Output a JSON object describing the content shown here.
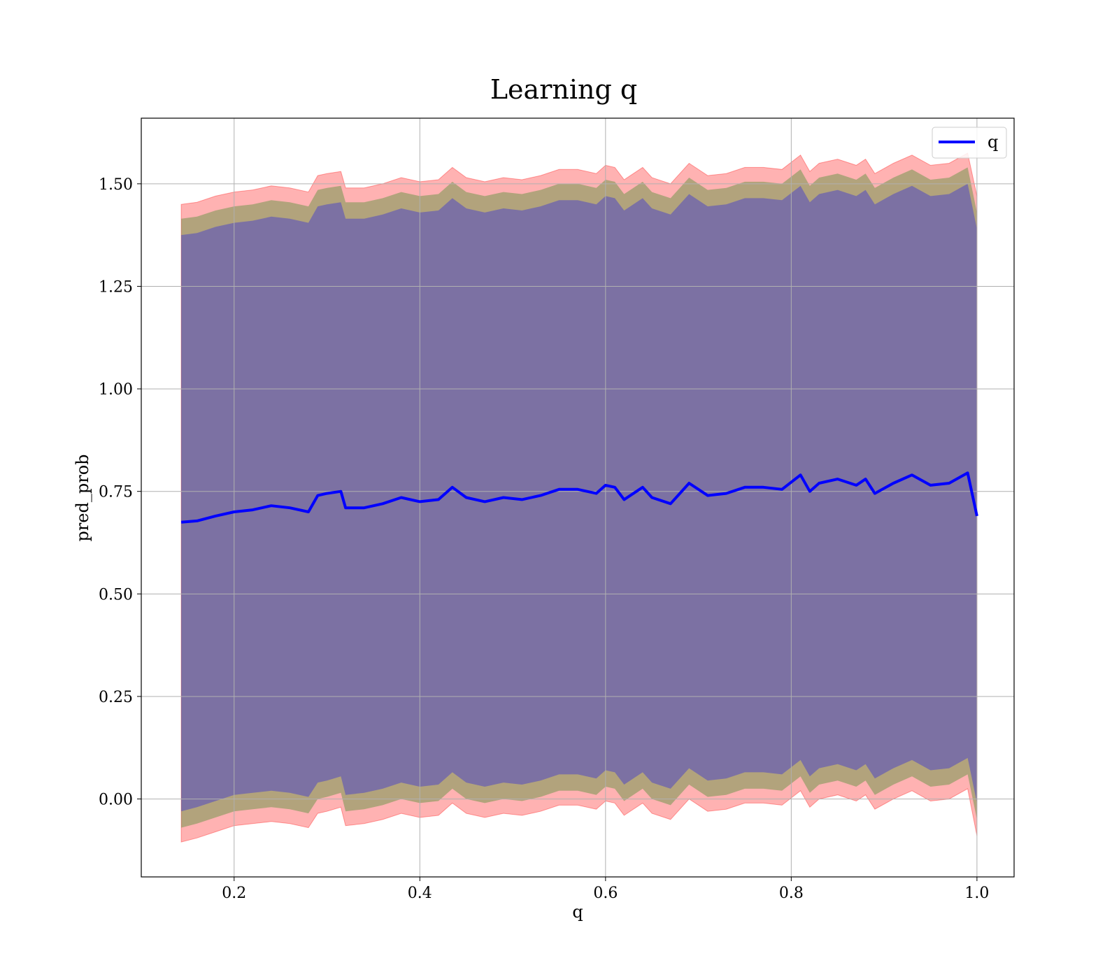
{
  "chart_data": {
    "type": "line",
    "title": "Learning q",
    "xlabel": "q",
    "ylabel": "pred_prob",
    "xlim": [
      0.1,
      1.04
    ],
    "ylim": [
      -0.19,
      1.66
    ],
    "xticks": [
      0.2,
      0.4,
      0.6,
      0.8,
      1.0
    ],
    "xtick_labels": [
      "0.2",
      "0.4",
      "0.6",
      "0.8",
      "1.0"
    ],
    "yticks": [
      0.0,
      0.25,
      0.5,
      0.75,
      1.0,
      1.25,
      1.5
    ],
    "ytick_labels": [
      "0.00",
      "0.25",
      "0.50",
      "0.75",
      "1.00",
      "1.25",
      "1.50"
    ],
    "grid": true,
    "legend": {
      "location": "upper-right",
      "entries": [
        {
          "label": "q",
          "color": "#0000ff"
        }
      ]
    },
    "colors": {
      "line": "#0000ff",
      "band": "#ff0000",
      "band_inner": "#008000",
      "band_core": "#0000ff"
    },
    "series": [
      {
        "name": "q",
        "x": [
          0.143,
          0.16,
          0.18,
          0.2,
          0.22,
          0.24,
          0.26,
          0.28,
          0.29,
          0.3,
          0.315,
          0.32,
          0.34,
          0.36,
          0.38,
          0.4,
          0.42,
          0.435,
          0.45,
          0.47,
          0.49,
          0.51,
          0.53,
          0.55,
          0.57,
          0.59,
          0.6,
          0.61,
          0.62,
          0.64,
          0.65,
          0.67,
          0.69,
          0.71,
          0.73,
          0.75,
          0.77,
          0.79,
          0.81,
          0.82,
          0.83,
          0.85,
          0.87,
          0.88,
          0.89,
          0.91,
          0.93,
          0.95,
          0.97,
          0.99,
          1.0
        ],
        "y": [
          0.675,
          0.678,
          0.69,
          0.7,
          0.705,
          0.715,
          0.71,
          0.7,
          0.74,
          0.745,
          0.75,
          0.71,
          0.71,
          0.72,
          0.735,
          0.725,
          0.73,
          0.76,
          0.735,
          0.725,
          0.735,
          0.73,
          0.74,
          0.755,
          0.755,
          0.745,
          0.765,
          0.76,
          0.73,
          0.76,
          0.735,
          0.72,
          0.77,
          0.74,
          0.745,
          0.76,
          0.76,
          0.755,
          0.79,
          0.75,
          0.77,
          0.78,
          0.765,
          0.78,
          0.745,
          0.77,
          0.79,
          0.765,
          0.77,
          0.795,
          0.69
        ],
        "band_95": {
          "lower": [
            -0.105,
            -0.095,
            -0.08,
            -0.065,
            -0.06,
            -0.055,
            -0.06,
            -0.07,
            -0.035,
            -0.03,
            -0.02,
            -0.065,
            -0.06,
            -0.05,
            -0.035,
            -0.045,
            -0.04,
            -0.01,
            -0.035,
            -0.045,
            -0.035,
            -0.04,
            -0.03,
            -0.015,
            -0.015,
            -0.025,
            -0.005,
            -0.01,
            -0.04,
            -0.01,
            -0.035,
            -0.05,
            0.0,
            -0.03,
            -0.025,
            -0.01,
            -0.01,
            -0.015,
            0.02,
            -0.02,
            0.0,
            0.01,
            -0.005,
            0.01,
            -0.025,
            0.0,
            0.02,
            -0.005,
            0.0,
            0.025,
            -0.09
          ],
          "upper": [
            1.45,
            1.455,
            1.47,
            1.48,
            1.485,
            1.495,
            1.49,
            1.48,
            1.52,
            1.525,
            1.53,
            1.49,
            1.49,
            1.5,
            1.515,
            1.505,
            1.51,
            1.54,
            1.515,
            1.505,
            1.515,
            1.51,
            1.52,
            1.535,
            1.535,
            1.525,
            1.545,
            1.54,
            1.51,
            1.54,
            1.515,
            1.5,
            1.55,
            1.52,
            1.525,
            1.54,
            1.54,
            1.535,
            1.57,
            1.53,
            1.55,
            1.56,
            1.545,
            1.56,
            1.525,
            1.55,
            1.57,
            1.545,
            1.55,
            1.575,
            1.47
          ]
        },
        "band_90": {
          "lower": [
            -0.07,
            -0.06,
            -0.045,
            -0.03,
            -0.025,
            -0.02,
            -0.025,
            -0.035,
            0.0,
            0.005,
            0.015,
            -0.03,
            -0.025,
            -0.015,
            0.0,
            -0.01,
            -0.005,
            0.025,
            0.0,
            -0.01,
            0.0,
            -0.005,
            0.005,
            0.02,
            0.02,
            0.01,
            0.03,
            0.025,
            -0.005,
            0.025,
            0.0,
            -0.015,
            0.035,
            0.005,
            0.01,
            0.025,
            0.025,
            0.02,
            0.055,
            0.015,
            0.035,
            0.045,
            0.03,
            0.045,
            0.01,
            0.035,
            0.055,
            0.03,
            0.035,
            0.06,
            -0.05
          ],
          "upper": [
            1.415,
            1.42,
            1.435,
            1.445,
            1.45,
            1.46,
            1.455,
            1.445,
            1.485,
            1.49,
            1.495,
            1.455,
            1.455,
            1.465,
            1.48,
            1.47,
            1.475,
            1.505,
            1.48,
            1.47,
            1.48,
            1.475,
            1.485,
            1.5,
            1.5,
            1.49,
            1.51,
            1.505,
            1.475,
            1.505,
            1.48,
            1.465,
            1.515,
            1.485,
            1.49,
            1.505,
            1.505,
            1.5,
            1.535,
            1.495,
            1.515,
            1.525,
            1.51,
            1.525,
            1.49,
            1.515,
            1.535,
            1.51,
            1.515,
            1.54,
            1.43
          ]
        },
        "band_80": {
          "lower": [
            -0.03,
            -0.02,
            -0.005,
            0.01,
            0.015,
            0.02,
            0.015,
            0.005,
            0.04,
            0.045,
            0.055,
            0.01,
            0.015,
            0.025,
            0.04,
            0.03,
            0.035,
            0.065,
            0.04,
            0.03,
            0.04,
            0.035,
            0.045,
            0.06,
            0.06,
            0.05,
            0.07,
            0.065,
            0.035,
            0.065,
            0.04,
            0.025,
            0.075,
            0.045,
            0.05,
            0.065,
            0.065,
            0.06,
            0.095,
            0.055,
            0.075,
            0.085,
            0.07,
            0.085,
            0.05,
            0.075,
            0.095,
            0.07,
            0.075,
            0.1,
            -0.01
          ],
          "upper": [
            1.375,
            1.38,
            1.395,
            1.405,
            1.41,
            1.42,
            1.415,
            1.405,
            1.445,
            1.45,
            1.455,
            1.415,
            1.415,
            1.425,
            1.44,
            1.43,
            1.435,
            1.465,
            1.44,
            1.43,
            1.44,
            1.435,
            1.445,
            1.46,
            1.46,
            1.45,
            1.47,
            1.465,
            1.435,
            1.465,
            1.44,
            1.425,
            1.475,
            1.445,
            1.45,
            1.465,
            1.465,
            1.46,
            1.495,
            1.455,
            1.475,
            1.485,
            1.47,
            1.485,
            1.45,
            1.475,
            1.495,
            1.47,
            1.475,
            1.5,
            1.39
          ]
        }
      }
    ]
  }
}
